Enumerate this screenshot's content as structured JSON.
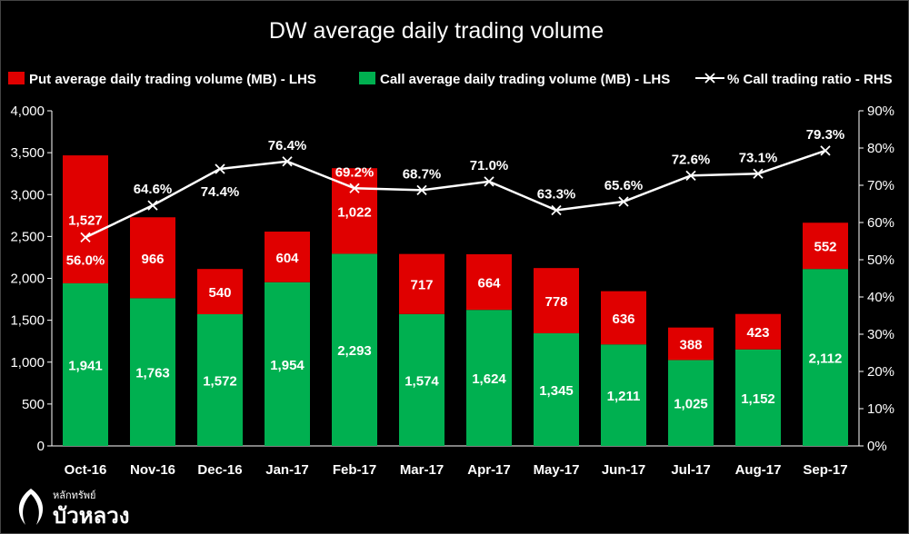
{
  "chart_data": {
    "type": "bar",
    "stacked": true,
    "title": "DW average daily trading volume",
    "categories": [
      "Oct-16",
      "Nov-16",
      "Dec-16",
      "Jan-17",
      "Feb-17",
      "Mar-17",
      "Apr-17",
      "May-17",
      "Jun-17",
      "Jul-17",
      "Aug-17",
      "Sep-17"
    ],
    "series": [
      {
        "name": "Put average daily trading volume (MB) - LHS",
        "type": "bar",
        "color": "#e00000",
        "values": [
          1527,
          966,
          540,
          604,
          1022,
          717,
          664,
          778,
          636,
          388,
          423,
          552
        ],
        "labels": [
          "1,527",
          "966",
          "540",
          "604",
          "1,022",
          "717",
          "664",
          "778",
          "636",
          "388",
          "423",
          "552"
        ]
      },
      {
        "name": "Call average daily trading volume (MB) - LHS",
        "type": "bar",
        "color": "#00b050",
        "values": [
          1941,
          1763,
          1572,
          1954,
          2293,
          1574,
          1624,
          1345,
          1211,
          1025,
          1152,
          2112
        ],
        "labels": [
          "1,941",
          "1,763",
          "1,572",
          "1,954",
          "2,293",
          "1,574",
          "1,624",
          "1,345",
          "1,211",
          "1,025",
          "1,152",
          "2,112"
        ]
      },
      {
        "name": "% Call trading ratio - RHS",
        "type": "line",
        "axis": "right",
        "color": "#ffffff",
        "values": [
          56.0,
          64.6,
          74.4,
          76.4,
          69.2,
          68.7,
          71.0,
          63.3,
          65.6,
          72.6,
          73.1,
          79.3
        ],
        "labels": [
          "56.0%",
          "64.6%",
          "74.4%",
          "76.4%",
          "69.2%",
          "68.7%",
          "71.0%",
          "63.3%",
          "65.6%",
          "72.6%",
          "73.1%",
          "79.3%"
        ]
      }
    ],
    "y_left": {
      "min": 0,
      "max": 4000,
      "ticks": [
        0,
        500,
        1000,
        1500,
        2000,
        2500,
        3000,
        3500,
        4000
      ],
      "tick_labels": [
        "0",
        "500",
        "1,000",
        "1,500",
        "2,000",
        "2,500",
        "3,000",
        "3,500",
        "4,000"
      ]
    },
    "y_right": {
      "min": 0,
      "max": 90,
      "ticks": [
        0,
        10,
        20,
        30,
        40,
        50,
        60,
        70,
        80,
        90
      ],
      "tick_labels": [
        "0%",
        "10%",
        "20%",
        "30%",
        "40%",
        "50%",
        "60%",
        "70%",
        "80%",
        "90%"
      ]
    },
    "legend_position": "top",
    "grid": false,
    "background": "#000000"
  },
  "logo": {
    "small_text": "หลักทรัพย์",
    "big_text": "บัวหลวง"
  }
}
